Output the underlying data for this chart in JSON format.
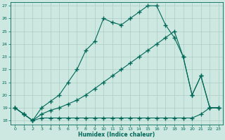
{
  "xlabel": "Humidex (Indice chaleur)",
  "bg_color": "#cce8e0",
  "grid_color": "#aaccc4",
  "line_color": "#006858",
  "xlim": [
    -0.5,
    23.5
  ],
  "ylim": [
    17.7,
    27.3
  ],
  "xticks": [
    0,
    1,
    2,
    3,
    4,
    5,
    6,
    7,
    8,
    9,
    10,
    11,
    12,
    13,
    14,
    15,
    16,
    17,
    18,
    19,
    20,
    21,
    22,
    23
  ],
  "yticks": [
    18,
    19,
    20,
    21,
    22,
    23,
    24,
    25,
    26,
    27
  ],
  "line1_x": [
    0,
    1,
    2,
    3,
    4,
    5,
    6,
    7,
    8,
    9,
    10,
    11,
    12,
    13,
    14,
    15,
    16,
    17,
    18,
    19,
    20,
    21,
    22,
    23
  ],
  "line1_y": [
    19.0,
    18.5,
    18.0,
    19.0,
    19.5,
    20.0,
    21.0,
    22.0,
    23.5,
    24.2,
    26.0,
    25.7,
    25.5,
    26.0,
    26.5,
    27.0,
    27.0,
    25.5,
    24.5,
    23.0,
    20.0,
    21.5,
    19.0,
    19.0
  ],
  "line2_x": [
    0,
    1,
    2,
    3,
    4,
    5,
    6,
    7,
    8,
    9,
    10,
    11,
    12,
    13,
    14,
    15,
    16,
    17,
    18,
    19,
    20,
    21,
    22,
    23
  ],
  "line2_y": [
    19.0,
    18.5,
    18.0,
    18.2,
    18.2,
    18.2,
    18.2,
    18.2,
    18.2,
    18.2,
    18.2,
    18.2,
    18.2,
    18.2,
    18.2,
    18.2,
    18.2,
    18.2,
    18.2,
    18.2,
    18.2,
    18.5,
    19.0,
    19.0
  ],
  "line3_x": [
    0,
    1,
    2,
    3,
    4,
    5,
    6,
    7,
    8,
    9,
    10,
    11,
    12,
    13,
    14,
    15,
    16,
    17,
    18,
    19,
    20,
    21,
    22,
    23
  ],
  "line3_y": [
    19.0,
    18.5,
    18.0,
    18.5,
    18.8,
    19.0,
    19.3,
    19.6,
    20.0,
    20.5,
    21.0,
    21.5,
    22.0,
    22.5,
    23.0,
    23.5,
    24.0,
    24.5,
    25.0,
    23.0,
    20.0,
    21.5,
    19.0,
    19.0
  ]
}
